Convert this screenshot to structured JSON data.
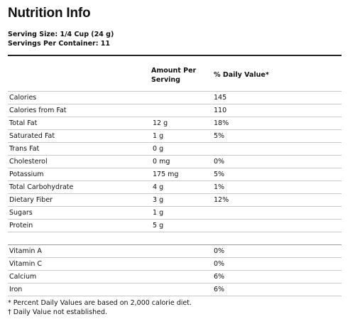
{
  "title": "Nutrition Info",
  "serving_size": "Serving Size: 1/4 Cup (24 g)",
  "servings_per_container": "Servings Per Container: 11",
  "headers": {
    "amount_line1": "Amount Per",
    "amount_line2": "Serving",
    "daily_value": "% Daily Value*"
  },
  "nutrients": [
    {
      "name": "Calories",
      "amount": "",
      "dv": "145"
    },
    {
      "name": "Calories from Fat",
      "amount": "",
      "dv": "110"
    },
    {
      "name": "Total Fat",
      "amount": "12 g",
      "dv": "18%"
    },
    {
      "name": "Saturated Fat",
      "amount": "1 g",
      "dv": "5%"
    },
    {
      "name": "Trans Fat",
      "amount": "0 g",
      "dv": ""
    },
    {
      "name": "Cholesterol",
      "amount": "0 mg",
      "dv": "0%"
    },
    {
      "name": "Potassium",
      "amount": "175 mg",
      "dv": "5%"
    },
    {
      "name": "Total Carbohydrate",
      "amount": "4 g",
      "dv": "1%"
    },
    {
      "name": "Dietary Fiber",
      "amount": "3 g",
      "dv": "12%"
    },
    {
      "name": "Sugars",
      "amount": "1 g",
      "dv": ""
    },
    {
      "name": "Protein",
      "amount": "5 g",
      "dv": ""
    }
  ],
  "vitamins": [
    {
      "name": "Vitamin A",
      "amount": "",
      "dv": "0%"
    },
    {
      "name": "Vitamin C",
      "amount": "",
      "dv": "0%"
    },
    {
      "name": "Calcium",
      "amount": "",
      "dv": "6%"
    },
    {
      "name": "Iron",
      "amount": "",
      "dv": "6%"
    }
  ],
  "footnotes": {
    "percent_note": "* Percent Daily Values are based on 2,000 calorie diet.",
    "dagger_note": "† Daily Value not established."
  }
}
